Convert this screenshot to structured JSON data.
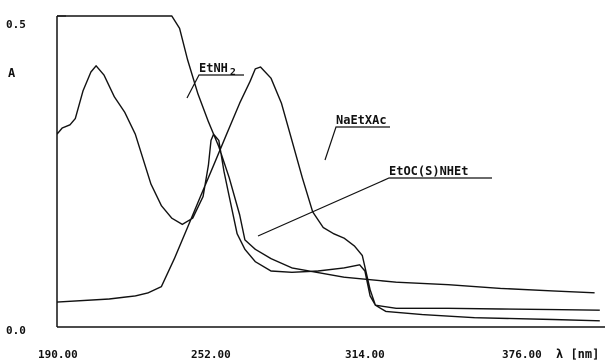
{
  "chart_data": {
    "type": "line",
    "title": "",
    "xlabel": "λ [nm]",
    "ylabel": "A",
    "xlim": [
      190,
      400
    ],
    "ylim": [
      0,
      0.5
    ],
    "x_ticks": [
      "190.00",
      "252.00",
      "314.00",
      "376.00"
    ],
    "x_tick_values": [
      190,
      252,
      314,
      376
    ],
    "y_ticks": [
      "0.0",
      "0.5"
    ],
    "y_tick_values": [
      0,
      0.5
    ],
    "grid": false,
    "legend": "none",
    "series": [
      {
        "name": "EtNH₂",
        "points": [
          [
            190,
            0.5
          ],
          [
            234,
            0.5
          ],
          [
            237,
            0.48
          ],
          [
            240,
            0.43
          ],
          [
            244,
            0.375
          ],
          [
            248,
            0.33
          ],
          [
            252,
            0.29
          ],
          [
            256,
            0.24
          ],
          [
            260,
            0.18
          ],
          [
            262,
            0.14
          ],
          [
            266,
            0.125
          ],
          [
            272,
            0.11
          ],
          [
            280,
            0.095
          ],
          [
            300,
            0.08
          ],
          [
            320,
            0.072
          ],
          [
            340,
            0.068
          ],
          [
            360,
            0.062
          ],
          [
            380,
            0.058
          ],
          [
            396,
            0.055
          ]
        ]
      },
      {
        "name": "NaEtXAc",
        "points": [
          [
            190,
            0.04
          ],
          [
            210,
            0.045
          ],
          [
            220,
            0.05
          ],
          [
            225,
            0.055
          ],
          [
            230,
            0.065
          ],
          [
            235,
            0.11
          ],
          [
            240,
            0.16
          ],
          [
            245,
            0.21
          ],
          [
            250,
            0.26
          ],
          [
            255,
            0.31
          ],
          [
            260,
            0.36
          ],
          [
            264,
            0.395
          ],
          [
            266,
            0.415
          ],
          [
            268,
            0.418
          ],
          [
            272,
            0.4
          ],
          [
            276,
            0.36
          ],
          [
            280,
            0.3
          ],
          [
            284,
            0.24
          ],
          [
            288,
            0.185
          ],
          [
            292,
            0.16
          ],
          [
            296,
            0.15
          ],
          [
            300,
            0.143
          ],
          [
            304,
            0.13
          ],
          [
            307,
            0.115
          ],
          [
            310,
            0.06
          ],
          [
            312,
            0.035
          ],
          [
            316,
            0.025
          ],
          [
            330,
            0.02
          ],
          [
            350,
            0.015
          ],
          [
            380,
            0.012
          ],
          [
            398,
            0.01
          ]
        ]
      },
      {
        "name": "EtOC(S)NHEt",
        "points": [
          [
            190,
            0.31
          ],
          [
            192,
            0.32
          ],
          [
            195,
            0.325
          ],
          [
            197,
            0.335
          ],
          [
            200,
            0.38
          ],
          [
            203,
            0.41
          ],
          [
            205,
            0.42
          ],
          [
            208,
            0.405
          ],
          [
            212,
            0.37
          ],
          [
            216,
            0.345
          ],
          [
            220,
            0.31
          ],
          [
            223,
            0.27
          ],
          [
            226,
            0.23
          ],
          [
            230,
            0.195
          ],
          [
            234,
            0.175
          ],
          [
            238,
            0.165
          ],
          [
            242,
            0.175
          ],
          [
            246,
            0.21
          ],
          [
            248,
            0.26
          ],
          [
            249,
            0.3
          ],
          [
            250,
            0.31
          ],
          [
            252,
            0.3
          ],
          [
            254,
            0.25
          ],
          [
            256,
            0.21
          ],
          [
            259,
            0.15
          ],
          [
            262,
            0.125
          ],
          [
            266,
            0.105
          ],
          [
            272,
            0.09
          ],
          [
            280,
            0.088
          ],
          [
            290,
            0.09
          ],
          [
            300,
            0.095
          ],
          [
            306,
            0.1
          ],
          [
            308,
            0.09
          ],
          [
            310,
            0.05
          ],
          [
            312,
            0.035
          ],
          [
            320,
            0.03
          ],
          [
            340,
            0.03
          ],
          [
            360,
            0.029
          ],
          [
            380,
            0.028
          ],
          [
            398,
            0.027
          ]
        ]
      }
    ],
    "annotations": [
      {
        "text": "EtNH",
        "sub": "2",
        "target": "EtNH₂"
      },
      {
        "text": "NaEtXAc",
        "target": "NaEtXAc"
      },
      {
        "text": "EtOC(S)NHEt",
        "target": "EtOC(S)NHEt"
      }
    ]
  }
}
